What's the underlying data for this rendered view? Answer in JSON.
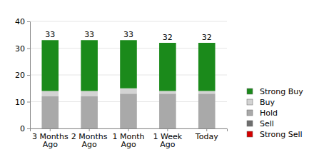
{
  "chart_data": {
    "type": "bar",
    "stacked": true,
    "grid": true,
    "legend": "right",
    "categories": [
      "3 Months\nAgo",
      "2 Months\nAgo",
      "1 Month\nAgo",
      "1 Week\nAgo",
      "Today"
    ],
    "series": [
      {
        "name": "Strong Buy",
        "color": "#1b8a1b",
        "values": [
          19,
          19,
          18,
          18,
          18
        ]
      },
      {
        "name": "Buy",
        "color": "#d3d3d3",
        "values": [
          2,
          2,
          2,
          1,
          1
        ]
      },
      {
        "name": "Hold",
        "color": "#a9a9a9",
        "values": [
          12,
          12,
          13,
          13,
          13
        ]
      },
      {
        "name": "Sell",
        "color": "#6e6e6e",
        "values": [
          0,
          0,
          0,
          0,
          0
        ]
      },
      {
        "name": "Strong Sell",
        "color": "#d40000",
        "values": [
          0,
          0,
          0,
          0,
          0
        ]
      }
    ],
    "totals": [
      33,
      33,
      33,
      32,
      32
    ],
    "ylim": [
      0,
      40
    ],
    "yticks": [
      0,
      10,
      20,
      30,
      40
    ]
  }
}
